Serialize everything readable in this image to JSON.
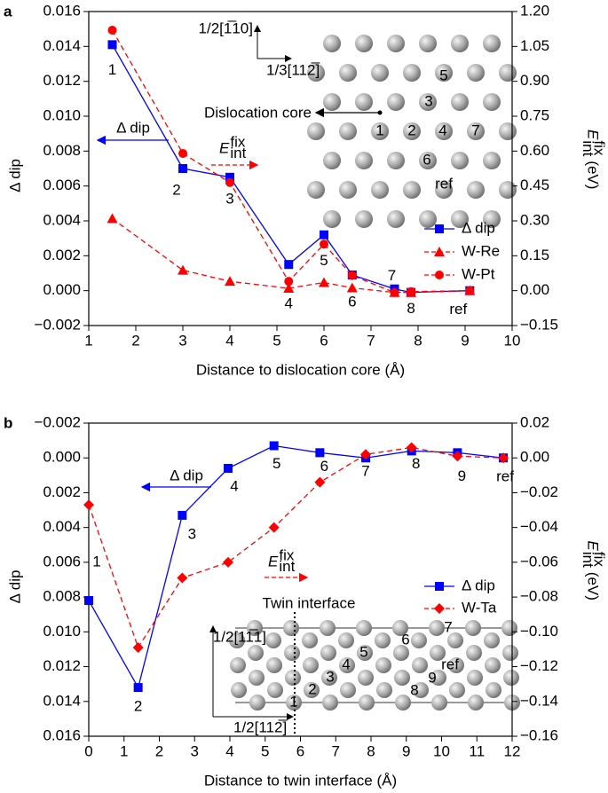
{
  "chart_data": [
    {
      "type": "line",
      "panel": "a",
      "xlabel": "Distance to dislocation core (Å)",
      "ylabel": "Δ dip",
      "y2label": {
        "base": "E",
        "sub": "int",
        "sup": "fix",
        "unit": "(eV)"
      },
      "xlim": [
        1,
        10
      ],
      "xticks": [
        1,
        2,
        3,
        4,
        5,
        6,
        7,
        8,
        9,
        10
      ],
      "ylim": [
        -0.002,
        0.016
      ],
      "yticks": [
        {
          "value": -0.002,
          "label": "−0.002"
        },
        {
          "value": 0,
          "label": "0.000"
        },
        {
          "value": 0.002,
          "label": "0.002"
        },
        {
          "value": 0.004,
          "label": "0.004"
        },
        {
          "value": 0.006,
          "label": "0.006"
        },
        {
          "value": 0.008,
          "label": "0.008"
        },
        {
          "value": 0.01,
          "label": "0.010"
        },
        {
          "value": 0.012,
          "label": "0.012"
        },
        {
          "value": 0.014,
          "label": "0.014"
        },
        {
          "value": 0.016,
          "label": "0.016"
        }
      ],
      "y2lim": [
        -0.15,
        1.2
      ],
      "y2ticks": [
        {
          "value": -0.15,
          "label": "−0.15"
        },
        {
          "value": 0,
          "label": "0.00"
        },
        {
          "value": 0.15,
          "label": "0.15"
        },
        {
          "value": 0.3,
          "label": "0.30"
        },
        {
          "value": 0.45,
          "label": "0.45"
        },
        {
          "value": 0.6,
          "label": "0.60"
        },
        {
          "value": 0.75,
          "label": "0.75"
        },
        {
          "value": 0.9,
          "label": "0.90"
        },
        {
          "value": 1.05,
          "label": "1.05"
        },
        {
          "value": 1.2,
          "label": "1.20"
        }
      ],
      "x": [
        1.5,
        3.0,
        4.0,
        5.25,
        6.0,
        6.6,
        7.5,
        7.85,
        9.1
      ],
      "series": [
        {
          "name": "Δ dip",
          "color": "#0000ff",
          "marker": "square",
          "linestyle": "solid",
          "values": [
            0.0141,
            0.007,
            0.0065,
            0.0015,
            0.0032,
            0.0009,
            0.0001,
            -0.0001,
            0
          ]
        },
        {
          "name": "W-Re",
          "color": "#ff0000",
          "marker": "triangle",
          "linestyle": "dashed",
          "axis": "y2",
          "values": [
            0.31,
            0.088,
            0.04,
            0.01,
            0.035,
            0.012,
            -0.008,
            -0.008,
            0
          ]
        },
        {
          "name": "W-Pt",
          "color": "#ff0000",
          "marker": "circle",
          "linestyle": "dashed",
          "axis": "y2",
          "values": [
            1.12,
            0.59,
            0.465,
            0.04,
            0.2,
            0.065,
            -0.008,
            -0.004,
            0
          ]
        }
      ],
      "point_labels": [
        "1",
        "2",
        "3",
        "4",
        "5",
        "6",
        "7",
        "8",
        "ref"
      ],
      "legend": "center right",
      "annotations": {
        "arrow_left": "Δ dip",
        "arrow_right": {
          "base": "E",
          "sub": "int",
          "sup": "fix"
        },
        "direction_vertical": "1/2[1̅10]",
        "direction_horizontal": "1/3[112̅]",
        "core": "Dislocation core",
        "inset_labels": [
          "5",
          "3",
          "1",
          "2",
          "4",
          "7",
          "6",
          "ref"
        ]
      }
    },
    {
      "type": "line",
      "panel": "b",
      "xlabel": "Distance to twin interface (Å)",
      "ylabel": "Δ dip",
      "y2label": {
        "base": "E",
        "sub": "int",
        "sup": "fix",
        "unit": "(eV)"
      },
      "xlim": [
        0,
        12
      ],
      "xticks": [
        0,
        1,
        2,
        3,
        4,
        5,
        6,
        7,
        8,
        9,
        10,
        11,
        12
      ],
      "ylim": [
        -0.002,
        0.016
      ],
      "y_inverted": true,
      "yticks": [
        {
          "value": -0.002,
          "label": "−0.002"
        },
        {
          "value": 0,
          "label": "0.000"
        },
        {
          "value": 0.002,
          "label": "0.002"
        },
        {
          "value": 0.004,
          "label": "0.004"
        },
        {
          "value": 0.006,
          "label": "0.006"
        },
        {
          "value": 0.008,
          "label": "0.008"
        },
        {
          "value": 0.01,
          "label": "0.010"
        },
        {
          "value": 0.012,
          "label": "0.012"
        },
        {
          "value": 0.014,
          "label": "0.014"
        },
        {
          "value": 0.016,
          "label": "0.016"
        }
      ],
      "y2lim": [
        -0.16,
        0.02
      ],
      "y2ticks": [
        {
          "value": -0.16,
          "label": "−0.16"
        },
        {
          "value": -0.14,
          "label": "−0.14"
        },
        {
          "value": -0.12,
          "label": "−0.12"
        },
        {
          "value": -0.1,
          "label": "−0.10"
        },
        {
          "value": -0.08,
          "label": "−0.08"
        },
        {
          "value": -0.06,
          "label": "−0.06"
        },
        {
          "value": -0.04,
          "label": "−0.04"
        },
        {
          "value": -0.02,
          "label": "−0.02"
        },
        {
          "value": 0,
          "label": "0.00"
        },
        {
          "value": 0.02,
          "label": "0.02"
        }
      ],
      "x": [
        0,
        1.4,
        2.65,
        3.95,
        5.25,
        6.55,
        7.85,
        9.15,
        10.45,
        11.75
      ],
      "series": [
        {
          "name": "Δ dip",
          "color": "#0000ff",
          "marker": "square",
          "linestyle": "solid",
          "values": [
            0.0082,
            0.0132,
            0.0033,
            0.0006,
            -0.0007,
            -0.0003,
            0,
            -0.0004,
            -0.0003,
            0
          ]
        },
        {
          "name": "W-Ta",
          "color": "#ff0000",
          "marker": "diamond",
          "linestyle": "dashed",
          "axis": "y2",
          "values": [
            -0.027,
            -0.109,
            -0.069,
            -0.06,
            -0.04,
            -0.014,
            0.002,
            0.006,
            0.001,
            0
          ]
        }
      ],
      "point_labels": [
        "1",
        "2",
        "3",
        "4",
        "5",
        "6",
        "7",
        "8",
        "9",
        "ref"
      ],
      "legend": "lower right",
      "annotations": {
        "arrow_left": "Δ dip",
        "arrow_right": {
          "base": "E",
          "sub": "int",
          "sup": "fix"
        },
        "twin": "Twin interface",
        "direction_vertical": "1/2[11̅1]",
        "direction_horizontal": "1/2[112̅]",
        "inset_labels": [
          "1",
          "2",
          "3",
          "4",
          "5",
          "6",
          "7",
          "8",
          "9",
          "ref"
        ]
      }
    }
  ]
}
